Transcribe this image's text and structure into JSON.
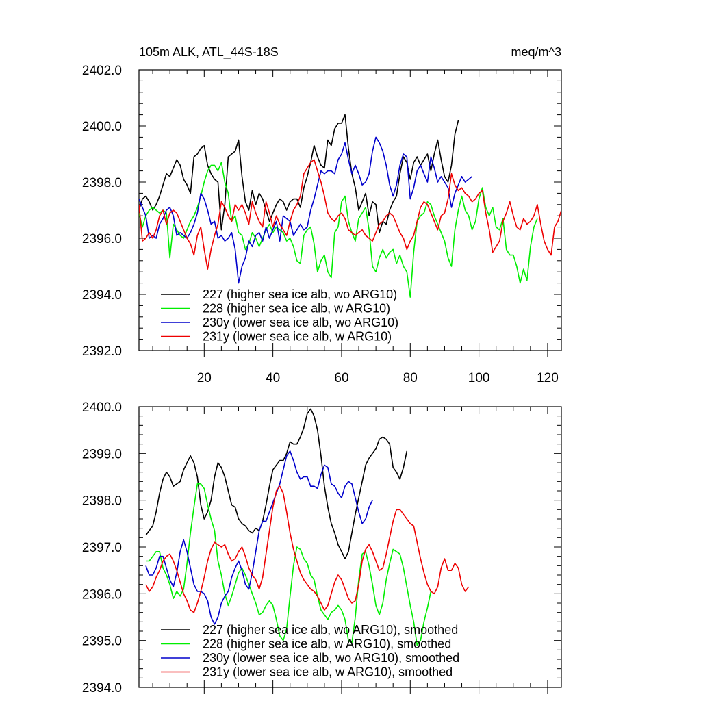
{
  "figure": {
    "title_left": "105m ALK, ATL_44S-18S",
    "title_right": "meq/m^3"
  },
  "chart_data": [
    {
      "type": "line",
      "title": "105m ALK, ATL_44S-18S",
      "units_label": "meq/m^3",
      "xlabel": "",
      "ylabel": "",
      "xlim": [
        1,
        124
      ],
      "ylim": [
        2392,
        2402
      ],
      "xticks": [
        20,
        40,
        60,
        80,
        100,
        120
      ],
      "xtick_labels": [
        "20",
        "40",
        "60",
        "80",
        "100",
        "120"
      ],
      "yticks": [
        2392,
        2394,
        2396,
        2398,
        2400,
        2402
      ],
      "ytick_labels": [
        "2392.0",
        "2394.0",
        "2396.0",
        "2398.0",
        "2400.0",
        "2402.0"
      ],
      "grid": false,
      "legend_position": "bottom-left",
      "series": [
        {
          "name": "227 (higher sea ice alb, wo ARG10)",
          "color": "#000000",
          "x_start": 1,
          "values": [
            2397.0,
            2397.4,
            2397.5,
            2397.3,
            2397.0,
            2397.2,
            2397.5,
            2397.9,
            2398.3,
            2398.2,
            2398.5,
            2398.8,
            2398.6,
            2398.1,
            2397.9,
            2397.6,
            2398.9,
            2399.0,
            2399.2,
            2399.3,
            2398.6,
            2398.3,
            2398.1,
            2398.0,
            2396.3,
            2397.2,
            2398.9,
            2399.0,
            2399.1,
            2399.5,
            2398.2,
            2397.3,
            2397.0,
            2397.7,
            2397.2,
            2397.6,
            2397.4,
            2397.0,
            2396.6,
            2396.9,
            2397.2,
            2397.4,
            2397.3,
            2397.0,
            2397.3,
            2397.4,
            2397.4,
            2397.1,
            2397.8,
            2398.2,
            2398.7,
            2399.3,
            2398.9,
            2398.6,
            2398.5,
            2399.5,
            2399.3,
            2399.9,
            2400.1,
            2400.1,
            2400.4,
            2399.2,
            2398.3,
            2397.8,
            2397.0,
            2397.3,
            2397.6,
            2396.8,
            2397.3,
            2397.2,
            2396.2,
            2396.6,
            2396.5,
            2397.0,
            2397.3,
            2397.5,
            2398.3,
            2398.9,
            2398.7,
            2398.1,
            2398.7,
            2398.9,
            2398.6,
            2398.8,
            2399.0,
            2398.4,
            2399.0,
            2399.5,
            2398.8,
            2398.2,
            2398.0,
            2398.6,
            2399.7,
            2400.2
          ]
        },
        {
          "name": "228 (higher sea ice alb, w ARG10)",
          "color": "#00ee00",
          "x_start": 1,
          "values": [
            2396.9,
            2396.4,
            2396.8,
            2397.0,
            2397.1,
            2397.0,
            2396.9,
            2397.0,
            2396.9,
            2395.3,
            2396.5,
            2396.3,
            2396.1,
            2396.0,
            2396.3,
            2396.6,
            2396.8,
            2397.1,
            2397.5,
            2398.0,
            2398.4,
            2398.6,
            2398.6,
            2398.4,
            2398.7,
            2398.0,
            2397.6,
            2396.6,
            2396.8,
            2396.2,
            2396.1,
            2395.6,
            2395.8,
            2396.2,
            2396.0,
            2395.7,
            2396.0,
            2396.3,
            2396.5,
            2396.2,
            2396.4,
            2396.3,
            2396.2,
            2395.9,
            2396.0,
            2395.7,
            2395.2,
            2395.1,
            2396.1,
            2396.3,
            2396.4,
            2395.8,
            2394.8,
            2395.2,
            2395.4,
            2394.8,
            2394.6,
            2396.2,
            2396.4,
            2397.3,
            2397.5,
            2396.6,
            2396.2,
            2395.9,
            2396.7,
            2396.9,
            2397.1,
            2396.3,
            2395.0,
            2394.8,
            2395.3,
            2395.6,
            2395.3,
            2395.5,
            2395.6,
            2395.1,
            2395.4,
            2395.0,
            2394.8,
            2393.9,
            2395.5,
            2396.6,
            2396.8,
            2396.9,
            2397.3,
            2397.2,
            2396.8,
            2396.5,
            2396.2,
            2395.9,
            2395.3,
            2395.0,
            2396.3,
            2397.0,
            2397.5,
            2397.0,
            2396.8,
            2396.3,
            2396.6,
            2397.4,
            2397.8,
            2397.1,
            2396.8,
            2397.1,
            2396.4,
            2396.3,
            2396.7,
            2395.6,
            2395.4,
            2395.4,
            2395.0,
            2394.4,
            2394.9,
            2394.5,
            2395.7,
            2396.4,
            2396.7
          ]
        },
        {
          "name": "230y (lower sea ice alb, wo ARG10)",
          "color": "#0000cc",
          "x_start": 1,
          "values": [
            2397.4,
            2397.1,
            2396.8,
            2396.0,
            2396.1,
            2396.0,
            2396.5,
            2396.7,
            2397.0,
            2397.1,
            2396.8,
            2396.1,
            2396.2,
            2396.1,
            2396.0,
            2396.2,
            2396.5,
            2396.9,
            2397.6,
            2397.4,
            2397.0,
            2396.5,
            2396.6,
            2396.0,
            2396.1,
            2395.9,
            2396.0,
            2396.2,
            2395.6,
            2394.4,
            2395.0,
            2395.3,
            2395.9,
            2395.7,
            2396.1,
            2396.2,
            2395.9,
            2396.4,
            2396.0,
            2396.3,
            2396.6,
            2395.9,
            2396.8,
            2396.7,
            2396.6,
            2396.1,
            2396.3,
            2396.5,
            2396.3,
            2396.4,
            2397.0,
            2397.4,
            2397.9,
            2398.4,
            2398.3,
            2398.4,
            2398.4,
            2398.3,
            2398.8,
            2399.0,
            2399.4,
            2398.8,
            2398.3,
            2398.6,
            2398.3,
            2397.9,
            2398.0,
            2398.3,
            2399.1,
            2399.6,
            2399.4,
            2399.1,
            2398.6,
            2397.9,
            2397.5,
            2397.9,
            2398.6,
            2399.0,
            2398.9,
            2397.4,
            2397.8,
            2398.4,
            2398.6,
            2398.3,
            2398.0,
            2398.9,
            2398.5,
            2398.0,
            2398.2,
            2398.0,
            2397.8,
            2397.1,
            2397.6,
            2397.9,
            2398.2,
            2398.0,
            2398.1,
            2398.2
          ]
        },
        {
          "name": "231y (lower sea ice alb, w ARG10)",
          "color": "#ee0000",
          "x_start": 1,
          "values": [
            2397.2,
            2395.9,
            2396.0,
            2396.2,
            2396.0,
            2396.3,
            2396.8,
            2397.0,
            2396.5,
            2396.9,
            2397.0,
            2396.9,
            2396.6,
            2396.3,
            2396.0,
            2395.8,
            2395.4,
            2396.1,
            2396.4,
            2395.6,
            2394.9,
            2395.6,
            2396.1,
            2396.5,
            2397.3,
            2397.1,
            2396.8,
            2396.6,
            2397.2,
            2397.0,
            2397.2,
            2396.9,
            2396.5,
            2397.3,
            2396.9,
            2396.6,
            2396.4,
            2397.3,
            2396.9,
            2396.4,
            2396.8,
            2396.5,
            2396.3,
            2396.1,
            2396.6,
            2397.0,
            2397.2,
            2397.5,
            2398.3,
            2398.5,
            2398.7,
            2398.8,
            2398.4,
            2398.0,
            2397.5,
            2396.9,
            2396.7,
            2396.6,
            2396.8,
            2396.9,
            2396.7,
            2396.3,
            2396.2,
            2396.1,
            2396.2,
            2396.3,
            2396.1,
            2396.0,
            2395.9,
            2396.2,
            2396.5,
            2396.6,
            2396.8,
            2396.9,
            2396.8,
            2396.5,
            2396.2,
            2396.0,
            2395.6,
            2395.9,
            2396.1,
            2396.6,
            2397.1,
            2397.3,
            2397.2,
            2396.9,
            2396.6,
            2396.3,
            2396.8,
            2396.9,
            2397.4,
            2398.3,
            2397.9,
            2397.7,
            2397.8,
            2397.6,
            2397.5,
            2397.3,
            2397.4,
            2397.6,
            2397.7,
            2396.9,
            2396.3,
            2395.5,
            2395.7,
            2395.9,
            2396.6,
            2396.9,
            2397.3,
            2396.8,
            2396.4,
            2396.3,
            2396.7,
            2396.5,
            2396.6,
            2396.8,
            2397.2,
            2396.5,
            2395.9,
            2395.6,
            2395.4,
            2396.4,
            2396.6,
            2397.0
          ]
        }
      ]
    },
    {
      "type": "line",
      "title": "",
      "xlabel": "",
      "ylabel": "",
      "xlim": [
        1,
        124
      ],
      "ylim": [
        2394,
        2400
      ],
      "xticks": [
        20,
        40,
        60,
        80,
        100,
        120
      ],
      "yticks": [
        2394,
        2395,
        2396,
        2397,
        2398,
        2399,
        2400
      ],
      "ytick_labels": [
        "2394.0",
        "2395.0",
        "2396.0",
        "2397.0",
        "2398.0",
        "2399.0",
        "2400.0"
      ],
      "grid": false,
      "legend_position": "bottom-left",
      "series": [
        {
          "name": "227 (higher sea ice alb, wo ARG10), smoothed",
          "color": "#000000",
          "x_start": 3,
          "values": [
            2397.25,
            2397.35,
            2397.45,
            2397.75,
            2398.15,
            2398.45,
            2398.6,
            2398.5,
            2398.3,
            2398.35,
            2398.4,
            2398.65,
            2398.8,
            2398.95,
            2398.8,
            2398.5,
            2397.9,
            2397.6,
            2397.75,
            2398.0,
            2398.5,
            2398.8,
            2398.7,
            2398.5,
            2398.2,
            2397.9,
            2397.85,
            2397.6,
            2397.5,
            2397.45,
            2397.35,
            2397.3,
            2397.4,
            2397.35,
            2397.55,
            2397.9,
            2398.3,
            2398.65,
            2398.75,
            2398.85,
            2398.85,
            2399.0,
            2399.25,
            2399.2,
            2399.2,
            2399.35,
            2399.55,
            2399.85,
            2399.95,
            2399.8,
            2399.5,
            2398.95,
            2398.3,
            2397.85,
            2397.5,
            2397.3,
            2397.05,
            2396.9,
            2396.75,
            2396.9,
            2397.3,
            2397.7,
            2398.05,
            2398.4,
            2398.75,
            2398.9,
            2399.0,
            2399.1,
            2399.3,
            2399.35,
            2399.3,
            2399.2,
            2398.7,
            2398.6,
            2398.45,
            2398.7,
            2399.05
          ]
        },
        {
          "name": "228 (higher sea ice alb, w ARG10), smoothed",
          "color": "#00ee00",
          "x_start": 3,
          "values": [
            2396.7,
            2396.7,
            2396.8,
            2396.9,
            2396.9,
            2396.55,
            2396.4,
            2396.2,
            2395.9,
            2396.05,
            2395.95,
            2396.1,
            2396.65,
            2397.3,
            2397.85,
            2398.35,
            2398.35,
            2398.25,
            2397.9,
            2397.6,
            2397.35,
            2396.7,
            2396.4,
            2396.0,
            2395.75,
            2395.95,
            2396.2,
            2396.45,
            2396.55,
            2396.4,
            2396.2,
            2396.0,
            2395.8,
            2395.55,
            2395.6,
            2395.75,
            2395.85,
            2395.75,
            2395.45,
            2395.1,
            2395.0,
            2395.25,
            2395.95,
            2396.6,
            2397.0,
            2396.95,
            2396.75,
            2396.65,
            2396.4,
            2396.3,
            2395.95,
            2395.65,
            2395.55,
            2395.45,
            2395.6,
            2395.65,
            2395.75,
            2395.65,
            2395.45,
            2395.0,
            2394.95,
            2395.5,
            2396.3,
            2396.85,
            2396.9,
            2396.6,
            2396.2,
            2395.75,
            2395.55,
            2395.8,
            2396.3,
            2396.65,
            2396.95,
            2396.9,
            2396.85,
            2396.55,
            2396.15,
            2395.75,
            2395.4,
            2394.9,
            2395.0,
            2395.4,
            2395.7,
            2396.05
          ]
        },
        {
          "name": "230y (lower sea ice alb, wo ARG10), smoothed",
          "color": "#0000cc",
          "x_start": 3,
          "values": [
            2396.6,
            2396.4,
            2396.4,
            2396.55,
            2396.8,
            2396.8,
            2396.55,
            2396.3,
            2396.15,
            2396.45,
            2396.9,
            2397.15,
            2396.9,
            2396.55,
            2396.2,
            2396.05,
            2396.05,
            2396.0,
            2395.85,
            2395.5,
            2395.35,
            2395.5,
            2395.8,
            2395.95,
            2396.05,
            2396.35,
            2396.55,
            2396.7,
            2396.5,
            2396.2,
            2396.1,
            2396.45,
            2396.9,
            2397.35,
            2397.55,
            2397.55,
            2397.75,
            2397.95,
            2398.15,
            2398.35,
            2398.65,
            2398.95,
            2399.05,
            2398.85,
            2398.6,
            2398.45,
            2398.5,
            2398.5,
            2398.3,
            2398.3,
            2398.25,
            2398.55,
            2398.75,
            2398.7,
            2398.35,
            2398.3,
            2398.15,
            2398.05,
            2398.3,
            2398.4,
            2398.35,
            2398.05,
            2397.75,
            2397.5,
            2397.6,
            2397.85,
            2398.0
          ]
        },
        {
          "name": "231y (lower sea ice alb, w ARG10), smoothed",
          "color": "#ee0000",
          "x_start": 3,
          "values": [
            2396.2,
            2396.05,
            2396.15,
            2396.35,
            2396.5,
            2396.7,
            2396.8,
            2396.85,
            2396.7,
            2396.5,
            2396.25,
            2396.0,
            2395.85,
            2395.65,
            2395.6,
            2395.8,
            2396.05,
            2396.35,
            2396.7,
            2396.95,
            2397.1,
            2397.05,
            2397.0,
            2397.05,
            2396.85,
            2396.7,
            2396.75,
            2396.9,
            2397.0,
            2396.8,
            2396.55,
            2396.4,
            2396.3,
            2396.1,
            2396.35,
            2396.85,
            2397.35,
            2397.85,
            2398.2,
            2398.3,
            2398.15,
            2397.75,
            2397.3,
            2396.95,
            2396.7,
            2396.45,
            2396.3,
            2396.2,
            2396.1,
            2396.05,
            2395.95,
            2395.8,
            2395.65,
            2395.75,
            2396.0,
            2396.25,
            2396.4,
            2396.3,
            2396.1,
            2395.9,
            2395.8,
            2395.85,
            2396.2,
            2396.7,
            2396.95,
            2397.05,
            2396.9,
            2396.7,
            2396.5,
            2396.55,
            2396.85,
            2397.2,
            2397.55,
            2397.8,
            2397.8,
            2397.7,
            2397.6,
            2397.5,
            2397.45,
            2397.1,
            2396.75,
            2396.45,
            2396.2,
            2396.05,
            2396.0,
            2396.15,
            2396.55,
            2396.75,
            2396.5,
            2396.5,
            2396.65,
            2396.55,
            2396.2,
            2396.05,
            2396.15
          ]
        }
      ]
    }
  ]
}
